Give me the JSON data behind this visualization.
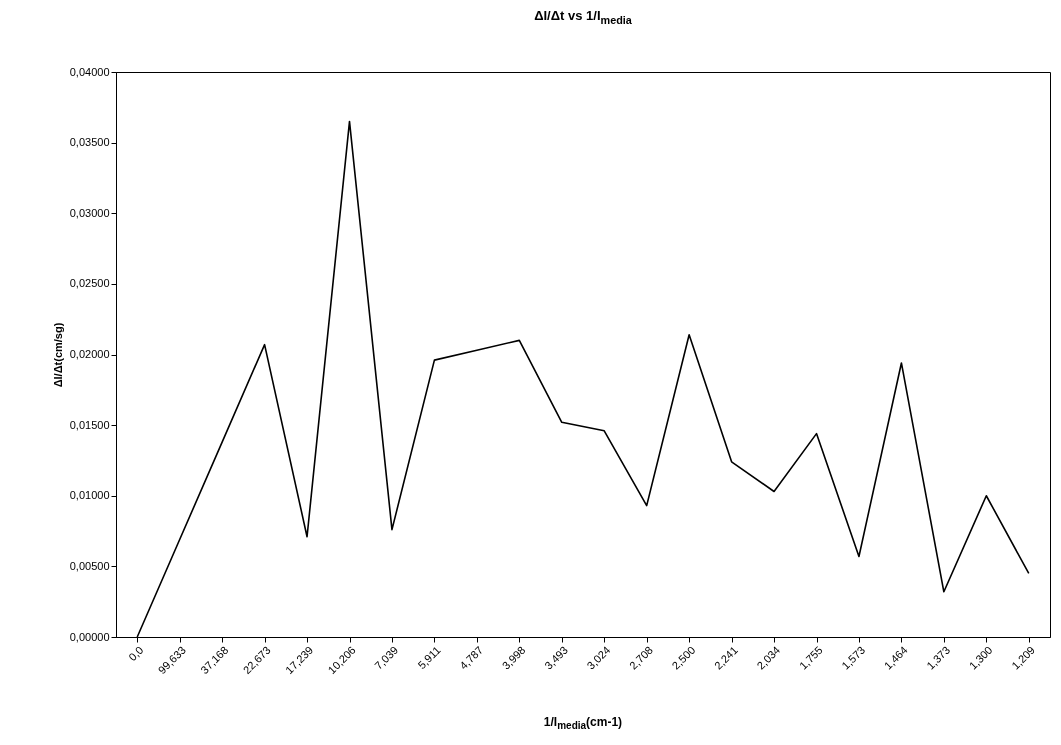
{
  "chart_data": {
    "type": "line",
    "title": "ΔI/Δt vs 1/I$_{media}$",
    "xlabel": "1/I$_{media}$(cm-1)",
    "ylabel": "ΔI/Δt(cm/sg)",
    "categories": [
      "0,0",
      "99,633",
      "37,168",
      "22,673",
      "17,239",
      "10,206",
      "7,039",
      "5,911",
      "4,787",
      "3,998",
      "3,493",
      "3,024",
      "2,708",
      "2,500",
      "2,241",
      "2,034",
      "1,755",
      "1,573",
      "1,464",
      "1,373",
      "1,300",
      "1,209"
    ],
    "series": [
      {
        "color": "#000000",
        "values": [
          0,
          0.0069,
          0.0138,
          0.0207,
          0.0071,
          0.0365,
          0.0076,
          0.0196,
          0.0203,
          0.021,
          0.0152,
          0.0146,
          0.0093,
          0.0214,
          0.0124,
          0.0103,
          0.0144,
          0.0057,
          0.0194,
          0.0032,
          0.01,
          0.0045
        ]
      }
    ],
    "ylim": [
      0,
      0.04
    ],
    "yticks": [
      {
        "value": 0,
        "label": "0,00000"
      },
      {
        "value": 0.005,
        "label": "0,00500"
      },
      {
        "value": 0.01,
        "label": "0,01000"
      },
      {
        "value": 0.015,
        "label": "0,01500"
      },
      {
        "value": 0.02,
        "label": "0,02000"
      },
      {
        "value": 0.025,
        "label": "0,02500"
      },
      {
        "value": 0.03,
        "label": "0,03000"
      },
      {
        "value": 0.035,
        "label": "0,03500"
      },
      {
        "value": 0.04,
        "label": "0,04000"
      }
    ],
    "grid": false,
    "marker": "none",
    "line_style": "solid"
  }
}
